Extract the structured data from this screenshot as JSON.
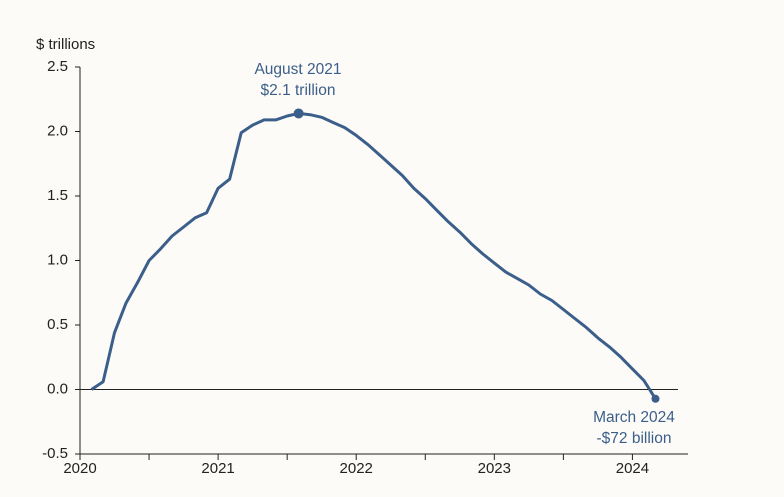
{
  "chart_data": {
    "type": "line",
    "y_label": "$ trillions",
    "x": [
      2020.083,
      2020.167,
      2020.25,
      2020.333,
      2020.417,
      2020.5,
      2020.583,
      2020.667,
      2020.75,
      2020.833,
      2020.917,
      2021.0,
      2021.083,
      2021.167,
      2021.25,
      2021.333,
      2021.417,
      2021.5,
      2021.583,
      2021.667,
      2021.75,
      2021.833,
      2021.917,
      2022.0,
      2022.083,
      2022.167,
      2022.25,
      2022.333,
      2022.417,
      2022.5,
      2022.583,
      2022.667,
      2022.75,
      2022.833,
      2022.917,
      2023.0,
      2023.083,
      2023.167,
      2023.25,
      2023.333,
      2023.417,
      2023.5,
      2023.583,
      2023.667,
      2023.75,
      2023.833,
      2023.917,
      2024.0,
      2024.083,
      2024.167
    ],
    "values": [
      0.0,
      0.06,
      0.44,
      0.67,
      0.83,
      1.0,
      1.09,
      1.19,
      1.26,
      1.33,
      1.37,
      1.56,
      1.63,
      1.99,
      2.05,
      2.09,
      2.09,
      2.12,
      2.14,
      2.13,
      2.11,
      2.07,
      2.03,
      1.97,
      1.9,
      1.82,
      1.74,
      1.66,
      1.56,
      1.48,
      1.39,
      1.3,
      1.22,
      1.13,
      1.05,
      0.98,
      0.91,
      0.86,
      0.81,
      0.74,
      0.69,
      0.62,
      0.55,
      0.48,
      0.4,
      0.33,
      0.25,
      0.16,
      0.07,
      -0.072
    ],
    "color": "#3b5f8a",
    "xlim": [
      2020,
      2024.33
    ],
    "xticks": [
      2020,
      2021,
      2022,
      2023,
      2024
    ],
    "xminor": [
      2020.5,
      2021.5,
      2022.5,
      2023.5
    ],
    "ylim": [
      -0.5,
      2.5
    ],
    "yticks": [
      -0.5,
      {
        "value": 0,
        "label": "0.0"
      },
      0.5,
      {
        "value": 1,
        "label": "1.0"
      },
      1.5,
      {
        "value": 2,
        "label": "2.0"
      },
      2.5
    ],
    "annotations": [
      {
        "index": 18,
        "lines": [
          "August 2021",
          "$2.1 trillion"
        ]
      },
      {
        "index": 49,
        "lines": [
          "March 2024",
          "-$72 billion"
        ]
      }
    ]
  }
}
